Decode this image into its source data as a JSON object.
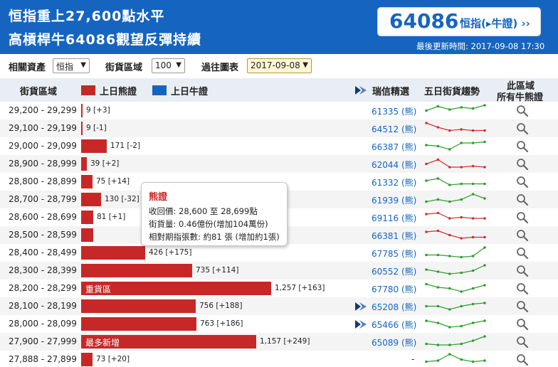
{
  "header": {
    "headline": "恒指重上27,600點水平",
    "subhead": "高槓桿牛64086觀望反彈持續",
    "code": "64086",
    "code_link": "恒指(▸牛證) ››",
    "updated": "最後更新時間: 2017-09-08 17:30"
  },
  "controls": {
    "asset_label": "相關資產",
    "asset_value": "恒指",
    "area_label": "街貨區域",
    "area_value": "100",
    "history_label": "過往圖表",
    "history_value": "2017-09-08"
  },
  "columns": {
    "range": "街貨區域",
    "bear_legend": "上日熊證",
    "bull_legend": "上日牛證",
    "ubs": "瑞信精選",
    "trend": "五日街貨趨勢",
    "area_line1": "此區域",
    "area_line2": "所有牛熊證"
  },
  "colors": {
    "bear": "#c62828",
    "bull": "#1565c0",
    "header": "#1565c0",
    "up": "#2e9e2e",
    "down": "#d32f2f"
  },
  "rows": [
    {
      "range": "29,200 - 29,299",
      "count": "9 [+3]",
      "value": 9,
      "label": "",
      "stock": "61335 (熊)",
      "sel": false,
      "trend": "up",
      "spark": [
        0.5,
        0.9,
        0.6,
        0.8,
        0.7,
        1.0
      ]
    },
    {
      "range": "29,100 - 29,199",
      "count": "9 [-1]",
      "value": 9,
      "label": "",
      "stock": "64512 (熊)",
      "sel": false,
      "trend": "down",
      "spark": [
        1.0,
        0.6,
        0.3,
        0.4,
        0.3,
        0.3
      ]
    },
    {
      "range": "29,000 - 29,099",
      "count": "171 [-2]",
      "value": 171,
      "label": "",
      "stock": "66387 (熊)",
      "sel": false,
      "trend": "up",
      "spark": [
        0.6,
        0.5,
        0.2,
        0.8,
        0.8,
        0.9
      ]
    },
    {
      "range": "28,900 - 28,999",
      "count": "39 [+2]",
      "value": 39,
      "label": "",
      "stock": "62044 (熊)",
      "sel": false,
      "trend": "down",
      "spark": [
        0.5,
        0.9,
        0.2,
        0.2,
        0.3,
        0.2
      ]
    },
    {
      "range": "28,800 - 28,899",
      "count": "75 [+14]",
      "value": 75,
      "label": "",
      "stock": "61332 (熊)",
      "sel": false,
      "trend": "up",
      "spark": [
        0.6,
        0.8,
        0.2,
        0.3,
        0.3,
        0.3
      ]
    },
    {
      "range": "28,700 - 28,799",
      "count": "130 [-32]",
      "value": 130,
      "label": "",
      "stock": "61939 (熊)",
      "sel": false,
      "trend": "up",
      "spark": [
        0.3,
        0.5,
        0.3,
        0.5,
        1.0,
        0.6
      ]
    },
    {
      "range": "28,600 - 28,699",
      "count": "81 [+1]",
      "value": 81,
      "label": "",
      "stock": "69116 (熊)",
      "sel": false,
      "trend": "down",
      "spark": [
        0.8,
        0.9,
        0.4,
        0.5,
        0.4,
        0.4
      ]
    },
    {
      "range": "28,500 - 28,599",
      "count": "",
      "value": 78,
      "label": "",
      "stock": "66381 (熊)",
      "sel": false,
      "trend": "down",
      "spark": [
        0.8,
        0.9,
        0.5,
        0.2,
        0.3,
        0.3
      ]
    },
    {
      "range": "28,400 - 28,499",
      "count": "426 [+175]",
      "value": 426,
      "label": "",
      "stock": "67785 (熊)",
      "sel": false,
      "trend": "up",
      "spark": [
        0.3,
        0.3,
        0.2,
        0.1,
        0.2,
        1.0
      ]
    },
    {
      "range": "28,300 - 28,399",
      "count": "735 [+114]",
      "value": 735,
      "label": "",
      "stock": "60552 (熊)",
      "sel": false,
      "trend": "up",
      "spark": [
        0.6,
        0.4,
        0.2,
        0.3,
        0.5,
        1.0
      ]
    },
    {
      "range": "28,200 - 28,299",
      "count": "1,257 [+163]",
      "value": 1257,
      "label": "重貨區",
      "stock": "67780 (熊)",
      "sel": false,
      "trend": "up",
      "spark": [
        0.9,
        0.6,
        0.5,
        0.2,
        0.5,
        0.8
      ]
    },
    {
      "range": "28,100 - 28,199",
      "count": "756 [+188]",
      "value": 756,
      "label": "",
      "stock": "65208 (熊)",
      "sel": true,
      "trend": "up",
      "spark": [
        0.5,
        0.5,
        0.2,
        0.5,
        0.7,
        0.8
      ]
    },
    {
      "range": "28,000 - 28,099",
      "count": "763 [+186]",
      "value": 763,
      "label": "",
      "stock": "65466 (熊)",
      "sel": true,
      "trend": "up",
      "spark": [
        0.8,
        0.6,
        0.2,
        0.3,
        0.6,
        0.8
      ]
    },
    {
      "range": "27,900 - 27,999",
      "count": "1,157 [+249]",
      "value": 1157,
      "label": "最多新增",
      "stock": "65089 (熊)",
      "sel": false,
      "trend": "up",
      "spark": [
        0.3,
        0.2,
        0.2,
        0.3,
        0.6,
        1.0
      ]
    },
    {
      "range": "27,888 - 27,899",
      "count": "73 [+20]",
      "value": 73,
      "label": "",
      "stock": "-",
      "sel": false,
      "trend": "up",
      "spark": [
        0.3,
        0.4,
        1.0,
        0.5,
        0.3,
        0.4
      ]
    }
  ],
  "tooltip": {
    "title": "熊證",
    "line1": "收回價: 28,600 至 28,699點",
    "line2": "街貨量: 0.46億份(增加104萬份)",
    "line3": "相對期指張數: 約81 張 (增加約1張)"
  }
}
